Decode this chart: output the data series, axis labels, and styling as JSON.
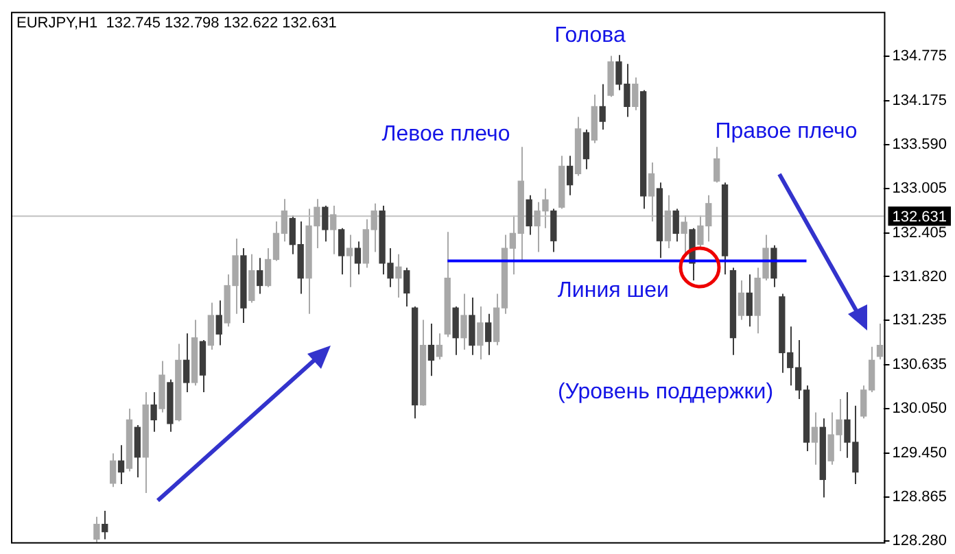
{
  "chart_data": {
    "type": "candlestick",
    "title": "EURJPY,H1  132.745 132.798 132.622 132.631",
    "colors": [
      null,
      null,
      null,
      null,
      null,
      null,
      null,
      null,
      null,
      null,
      "#a8a8a8",
      "#3c3c3c",
      "#a8a8a8",
      "#3c3c3c",
      "#a8a8a8",
      "#3c3c3c",
      "#a8a8a8",
      "#3c3c3c",
      "#a8a8a8",
      "#3c3c3c",
      "#a8a8a8",
      "#3c3c3c",
      "#a8a8a8",
      "#3c3c3c",
      "#a8a8a8",
      "#3c3c3c",
      "#a8a8a8",
      "#a8a8a8",
      "#3c3c3c",
      "#a8a8a8",
      "#3c3c3c",
      "#a8a8a8",
      "#a8a8a8",
      "#a8a8a8",
      "#3c3c3c",
      "#3c3c3c",
      "#a8a8a8",
      "#a8a8a8",
      "#3c3c3c",
      "#a8a8a8",
      "#3c3c3c",
      "#a8a8a8",
      "#3c3c3c",
      "#a8a8a8",
      "#a8a8a8",
      "#3c3c3c",
      "#3c3c3c",
      "#a8a8a8",
      "#3c3c3c",
      "#3c3c3c",
      "#a8a8a8",
      "#3c3c3c",
      "#a8a8a8",
      "#a8a8a8",
      "#3c3c3c",
      "#a8a8a8",
      "#3c3c3c",
      "#a8a8a8",
      "#3c3c3c",
      "#a8a8a8",
      "#a8a8a8",
      "#a8a8a8",
      "#a8a8a8",
      "#3c3c3c",
      "#a8a8a8",
      "#a8a8a8",
      "#3c3c3c",
      "#a8a8a8",
      "#3c3c3c",
      "#a8a8a8",
      "#3c3c3c",
      "#a8a8a8",
      "#3c3c3c",
      "#a8a8a8",
      "#3c3c3c",
      "#3c3c3c",
      "#a8a8a8",
      "#3c3c3c",
      "#a8a8a8",
      "#3c3c3c",
      "#a8a8a8",
      "#3c3c3c",
      "#a8a8a8",
      "#3c3c3c",
      "#a8a8a8",
      "#a8a8a8",
      "#a8a8a8",
      "#3c3c3c",
      "#3c3c3c",
      "#a8a8a8",
      "#3c3c3c",
      "#a8a8a8",
      "#a8a8a8",
      "#3c3c3c",
      "#3c3c3c",
      "#3c3c3c",
      "#3c3c3c",
      "#3c3c3c",
      "#a8a8a8",
      "#3c3c3c",
      "#a8a8a8",
      "#a8a8a8",
      "#3c3c3c",
      "#3c3c3c",
      "#a8a8a8",
      "#a8a8a8",
      "#a8a8a8"
    ],
    "categories": [
      null,
      null,
      null,
      null,
      null,
      null,
      null,
      null,
      null,
      null,
      null,
      null,
      null,
      null,
      null,
      null,
      null,
      null,
      null,
      null,
      null,
      null,
      null,
      null,
      null,
      null,
      null,
      null,
      null,
      null,
      null,
      null,
      null,
      null,
      null,
      null,
      null,
      null,
      null,
      null,
      null,
      null,
      null,
      null,
      null,
      null,
      null,
      null,
      null,
      null,
      null,
      null,
      null,
      null,
      null,
      null,
      null,
      null,
      null,
      null,
      null,
      null,
      null,
      null,
      null,
      null,
      null,
      null,
      null,
      null,
      null,
      null,
      null,
      null,
      null,
      null,
      null,
      null,
      null,
      null,
      null,
      null,
      null,
      null,
      null,
      null,
      null,
      null,
      null,
      null,
      null,
      null,
      null,
      null,
      null,
      null,
      null,
      null,
      null,
      null,
      null,
      null,
      null,
      null,
      null,
      null,
      null
    ],
    "ohlc": [
      null,
      null,
      null,
      null,
      null,
      null,
      null,
      null,
      null,
      null,
      [
        128.3,
        128.6,
        128.26,
        128.5
      ],
      [
        128.5,
        128.68,
        128.3,
        128.4
      ],
      [
        129.05,
        129.45,
        129.0,
        129.35
      ],
      [
        129.35,
        129.56,
        129.04,
        129.2
      ],
      [
        129.25,
        130.05,
        129.21,
        129.9
      ],
      [
        129.8,
        129.83,
        129.13,
        129.4
      ],
      [
        129.4,
        130.27,
        128.92,
        130.1
      ],
      [
        130.1,
        130.27,
        129.74,
        129.9
      ],
      [
        130.05,
        130.69,
        130.0,
        130.5
      ],
      [
        130.4,
        130.44,
        129.74,
        129.85
      ],
      [
        129.9,
        130.92,
        129.88,
        130.7
      ],
      [
        130.7,
        131.06,
        130.27,
        130.4
      ],
      [
        130.4,
        131.24,
        130.36,
        131.0
      ],
      [
        130.95,
        130.97,
        130.27,
        130.5
      ],
      [
        130.9,
        131.47,
        130.84,
        131.3
      ],
      [
        131.3,
        131.5,
        130.9,
        131.05
      ],
      [
        131.2,
        131.85,
        131.15,
        131.7
      ],
      [
        131.7,
        132.33,
        131.32,
        132.1
      ],
      [
        132.1,
        132.2,
        131.2,
        131.4
      ],
      [
        131.5,
        132.12,
        131.47,
        131.9
      ],
      [
        131.9,
        132.07,
        131.59,
        131.7
      ],
      [
        131.7,
        132.2,
        131.68,
        132.05
      ],
      [
        132.05,
        132.56,
        132.03,
        132.4
      ],
      [
        132.4,
        132.86,
        132.29,
        132.7
      ],
      [
        132.6,
        132.64,
        132.12,
        132.25
      ],
      [
        132.25,
        132.56,
        131.59,
        131.8
      ],
      [
        131.8,
        132.73,
        131.32,
        132.5
      ],
      [
        132.5,
        132.86,
        132.2,
        132.75
      ],
      [
        132.75,
        132.77,
        132.29,
        132.45
      ],
      [
        132.45,
        132.77,
        132.12,
        132.65
      ],
      [
        132.45,
        132.47,
        131.85,
        132.1
      ],
      [
        132.1,
        132.38,
        131.68,
        132.2
      ],
      [
        132.2,
        132.29,
        131.85,
        132.0
      ],
      [
        132.0,
        132.59,
        131.94,
        132.45
      ],
      [
        132.45,
        132.8,
        132.15,
        132.7
      ],
      [
        132.7,
        132.77,
        131.85,
        132.0
      ],
      [
        132.0,
        132.2,
        131.68,
        131.8
      ],
      [
        131.8,
        132.12,
        131.54,
        131.95
      ],
      [
        131.9,
        131.94,
        131.42,
        131.6
      ],
      [
        131.4,
        131.42,
        129.92,
        130.1
      ],
      [
        130.1,
        131.24,
        130.09,
        130.9
      ],
      [
        130.9,
        131.19,
        130.49,
        130.7
      ],
      [
        130.75,
        131.06,
        130.71,
        130.9
      ],
      [
        131.05,
        132.42,
        131.01,
        131.8
      ],
      [
        131.4,
        131.42,
        130.77,
        131.0
      ],
      [
        131.0,
        131.59,
        130.84,
        131.3
      ],
      [
        131.3,
        131.54,
        130.77,
        130.9
      ],
      [
        130.9,
        131.42,
        130.71,
        131.2
      ],
      [
        131.2,
        131.32,
        130.77,
        130.95
      ],
      [
        130.95,
        131.59,
        130.9,
        131.4
      ],
      [
        131.4,
        132.38,
        131.32,
        132.2
      ],
      [
        132.2,
        132.64,
        131.85,
        132.4
      ],
      [
        132.4,
        133.56,
        132.03,
        133.1
      ],
      [
        132.85,
        132.91,
        132.38,
        132.5
      ],
      [
        132.5,
        132.82,
        132.15,
        132.7
      ],
      [
        132.7,
        133.0,
        132.47,
        132.85
      ],
      [
        132.7,
        132.73,
        132.15,
        132.3
      ],
      [
        132.75,
        133.44,
        132.73,
        133.3
      ],
      [
        133.3,
        133.44,
        132.91,
        133.05
      ],
      [
        133.2,
        133.96,
        133.17,
        133.8
      ],
      [
        133.75,
        133.79,
        133.26,
        133.4
      ],
      [
        133.65,
        134.26,
        133.61,
        134.1
      ],
      [
        134.1,
        134.4,
        133.79,
        133.9
      ],
      [
        134.25,
        134.78,
        134.23,
        134.7
      ],
      [
        134.7,
        134.79,
        134.32,
        134.4
      ],
      [
        134.4,
        134.67,
        133.96,
        134.1
      ],
      [
        134.1,
        134.49,
        134.05,
        134.4
      ],
      [
        134.3,
        134.32,
        132.73,
        132.9
      ],
      [
        132.9,
        133.35,
        132.56,
        133.2
      ],
      [
        133.0,
        133.08,
        132.07,
        132.3
      ],
      [
        132.3,
        132.91,
        132.2,
        132.7
      ],
      [
        132.7,
        132.73,
        132.29,
        132.4
      ],
      [
        132.4,
        132.64,
        132.12,
        132.55
      ],
      [
        132.45,
        132.47,
        131.77,
        132.0
      ],
      [
        132.25,
        132.64,
        132.2,
        132.5
      ],
      [
        132.5,
        132.91,
        132.29,
        132.8
      ],
      [
        133.1,
        133.56,
        133.08,
        133.4
      ],
      [
        133.05,
        133.08,
        131.85,
        132.1
      ],
      [
        131.9,
        131.94,
        130.77,
        131.0
      ],
      [
        131.3,
        131.77,
        131.24,
        131.6
      ],
      [
        131.6,
        131.85,
        131.15,
        131.3
      ],
      [
        131.3,
        131.94,
        131.06,
        131.8
      ],
      [
        131.8,
        132.38,
        131.77,
        132.2
      ],
      [
        132.2,
        132.24,
        131.68,
        131.8
      ],
      [
        131.55,
        131.59,
        130.53,
        130.8
      ],
      [
        130.8,
        131.15,
        130.36,
        130.6
      ],
      [
        130.6,
        130.97,
        130.18,
        130.3
      ],
      [
        130.3,
        130.36,
        129.48,
        129.6
      ],
      [
        129.6,
        130.0,
        129.3,
        129.8
      ],
      [
        129.8,
        129.92,
        128.86,
        129.1
      ],
      [
        129.35,
        130.0,
        129.3,
        129.7
      ],
      [
        129.7,
        130.18,
        129.48,
        129.9
      ],
      [
        129.9,
        130.27,
        129.39,
        129.6
      ],
      [
        129.6,
        130.09,
        129.04,
        129.2
      ],
      [
        129.95,
        130.36,
        129.92,
        130.3
      ],
      [
        130.3,
        130.88,
        130.27,
        130.7
      ],
      [
        130.75,
        131.19,
        130.71,
        130.9
      ]
    ],
    "series": [
      {
        "type": "line",
        "name": "Линия шеи",
        "color": "#0000ff",
        "values": [
          null,
          null,
          null,
          null,
          null,
          null,
          null,
          null,
          null,
          null,
          null,
          null,
          null,
          null,
          null,
          null,
          null,
          null,
          null,
          null,
          null,
          null,
          null,
          null,
          null,
          null,
          null,
          null,
          null,
          null,
          null,
          null,
          null,
          null,
          null,
          null,
          null,
          null,
          null,
          null,
          null,
          null,
          null,
          null,
          null,
          null,
          null,
          null,
          null,
          null,
          null,
          null,
          null,
          132.03,
          132.03,
          132.03,
          132.03,
          132.03,
          132.03,
          132.03,
          132.03,
          132.03,
          132.03,
          132.03,
          132.03,
          132.03,
          132.03,
          132.03,
          132.03,
          132.03,
          132.03,
          132.03,
          132.03,
          132.03,
          132.03,
          132.03,
          132.03,
          132.03,
          132.03,
          132.03,
          132.03,
          132.03,
          132.03,
          132.03,
          132.03,
          132.03,
          132.03,
          132.03,
          132.03,
          132.03,
          132.03,
          132.03,
          132.03,
          132.03,
          132.03,
          132.03,
          132.03,
          132.03,
          null,
          null,
          null,
          null,
          null,
          null,
          null,
          null,
          null
        ]
      }
    ],
    "ylim": [
      128.26,
      135.37
    ],
    "yticks": [
      134.775,
      134.175,
      {
        "value": 133.59,
        "label": "133.590"
      },
      133.005,
      132.405,
      {
        "value": 131.82,
        "label": "131.820"
      },
      131.235,
      130.635,
      {
        "value": 130.05,
        "label": "130.050"
      },
      {
        "value": 129.45,
        "label": "129.450"
      },
      128.865,
      {
        "value": 128.28,
        "label": "128.280"
      }
    ],
    "ref_lines": [
      {
        "axis": "y",
        "value": 132.631,
        "label": "132.631",
        "color": "#c0c0c0"
      }
    ],
    "annotations": [
      "Левое плечо",
      "Голова",
      "Правое плечо",
      "(Уровень поддержки)"
    ],
    "tick_labels": "y",
    "grid": false,
    "legend": false
  }
}
